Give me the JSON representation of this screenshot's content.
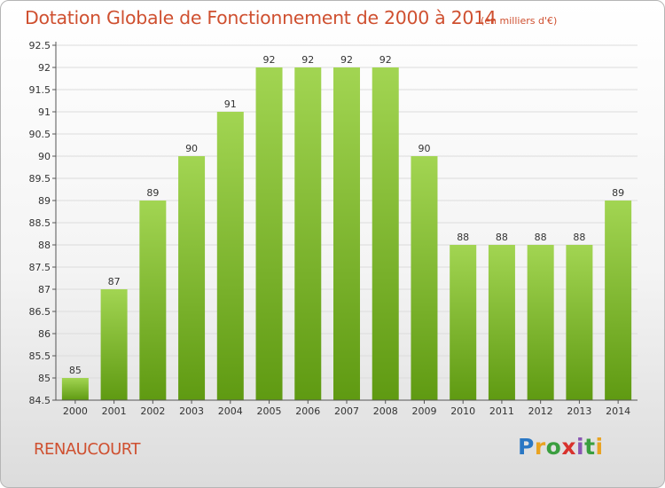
{
  "header": {
    "title": "Dotation Globale de Fonctionnement de 2000 à 2014",
    "unit": "(en milliers d'€)"
  },
  "footer": {
    "commune": "RENAUCOURT",
    "logo": "Proxiti"
  },
  "chart_data": {
    "type": "bar",
    "title": "Dotation Globale de Fonctionnement de 2000 à 2014",
    "subtitle": "(en milliers d'€)",
    "xlabel": "",
    "ylabel": "",
    "categories": [
      "2000",
      "2001",
      "2002",
      "2003",
      "2004",
      "2005",
      "2006",
      "2007",
      "2008",
      "2009",
      "2010",
      "2011",
      "2012",
      "2013",
      "2014"
    ],
    "values": [
      85,
      87,
      89,
      90,
      91,
      92,
      92,
      92,
      92,
      90,
      88,
      88,
      88,
      88,
      89
    ],
    "data_labels": [
      "85",
      "87",
      "89",
      "90",
      "91",
      "92",
      "92",
      "92",
      "92",
      "90",
      "88",
      "88",
      "88",
      "88",
      "89"
    ],
    "ylim": [
      84.5,
      92.5
    ],
    "yticks": [
      84.5,
      85,
      85.5,
      86,
      86.5,
      87,
      87.5,
      88,
      88.5,
      89,
      89.5,
      90,
      90.5,
      91,
      91.5,
      92,
      92.5
    ],
    "ytick_labels": [
      "84.5",
      "85",
      "85.5",
      "86",
      "86.5",
      "87",
      "87.5",
      "88",
      "88.5",
      "89",
      "89.5",
      "90",
      "90.5",
      "91",
      "91.5",
      "92",
      "92.5"
    ],
    "grid": true,
    "colors": {
      "bar_top": "#a2d552",
      "bar_bottom": "#5f9a12",
      "grid": "#dcdcdc",
      "axis": "#555555",
      "text": "#333333",
      "accent": "#cf5030"
    }
  }
}
